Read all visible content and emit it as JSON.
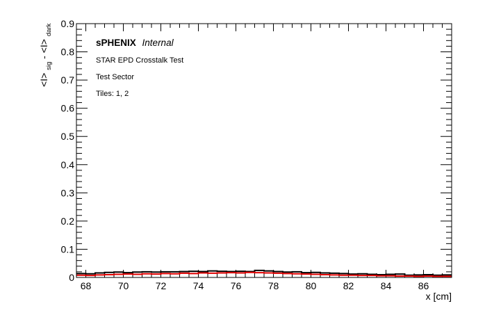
{
  "chart_data": {
    "type": "line",
    "style": "step-histogram",
    "title": "",
    "annotations": {
      "experiment": "sPHENIX",
      "status": "Internal",
      "line1": "STAR EPD Crosstalk Test",
      "line2": "Test Sector",
      "line3": "Tiles: 1, 2"
    },
    "xlabel": "x [cm]",
    "ylabel_main": "<I>",
    "ylabel_sub1": "sig",
    "ylabel_mid": " - <I>",
    "ylabel_sub2": "dark",
    "xlim": [
      67.5,
      87.5
    ],
    "ylim": [
      0,
      0.9
    ],
    "xticks": [
      68,
      70,
      72,
      74,
      76,
      78,
      80,
      82,
      84,
      86
    ],
    "xtick_labels": [
      "68",
      "70",
      "72",
      "74",
      "76",
      "78",
      "80",
      "82",
      "84",
      "86"
    ],
    "yticks": [
      0,
      0.1,
      0.2,
      0.3,
      0.4,
      0.5,
      0.6,
      0.7,
      0.8,
      0.9
    ],
    "ytick_labels": [
      "0",
      "0.1",
      "0.2",
      "0.3",
      "0.4",
      "0.5",
      "0.6",
      "0.7",
      "0.8",
      "0.9"
    ],
    "grid": false,
    "series": [
      {
        "color": "#000000",
        "bin_edges": [
          67.5,
          68.0,
          68.5,
          69.0,
          69.5,
          70.0,
          70.5,
          71.0,
          71.5,
          72.0,
          72.5,
          73.0,
          73.5,
          74.0,
          74.5,
          75.0,
          75.5,
          76.0,
          76.5,
          77.0,
          77.5,
          78.0,
          78.5,
          79.0,
          79.5,
          80.0,
          80.5,
          81.0,
          81.5,
          82.0,
          82.5,
          83.0,
          83.5,
          84.0,
          84.5,
          85.0,
          85.5,
          86.0,
          86.5,
          87.0,
          87.5
        ],
        "values": [
          0.014,
          0.013,
          0.016,
          0.018,
          0.019,
          0.017,
          0.019,
          0.02,
          0.019,
          0.02,
          0.02,
          0.021,
          0.022,
          0.021,
          0.023,
          0.022,
          0.021,
          0.022,
          0.021,
          0.025,
          0.023,
          0.021,
          0.019,
          0.02,
          0.017,
          0.018,
          0.016,
          0.015,
          0.014,
          0.012,
          0.013,
          0.011,
          0.01,
          0.011,
          0.012,
          0.008,
          0.009,
          0.01,
          0.008,
          0.009
        ]
      },
      {
        "color": "#e00000",
        "bin_edges": [
          67.5,
          68.0,
          68.5,
          69.0,
          69.5,
          70.0,
          70.5,
          71.0,
          71.5,
          72.0,
          72.5,
          73.0,
          73.5,
          74.0,
          74.5,
          75.0,
          75.5,
          76.0,
          76.5,
          77.0,
          77.5,
          78.0,
          78.5,
          79.0,
          79.5,
          80.0,
          80.5,
          81.0,
          81.5,
          82.0,
          82.5,
          83.0,
          83.5,
          84.0,
          84.5,
          85.0,
          85.5,
          86.0,
          86.5,
          87.0,
          87.5
        ],
        "values": [
          0.008,
          0.007,
          0.009,
          0.01,
          0.011,
          0.012,
          0.011,
          0.013,
          0.012,
          0.014,
          0.013,
          0.015,
          0.014,
          0.016,
          0.015,
          0.016,
          0.017,
          0.016,
          0.018,
          0.017,
          0.016,
          0.015,
          0.014,
          0.013,
          0.012,
          0.011,
          0.01,
          0.009,
          0.008,
          0.008,
          0.007,
          0.007,
          0.006,
          0.006,
          0.005,
          0.005,
          0.004,
          0.005,
          0.004,
          0.004
        ]
      }
    ]
  }
}
